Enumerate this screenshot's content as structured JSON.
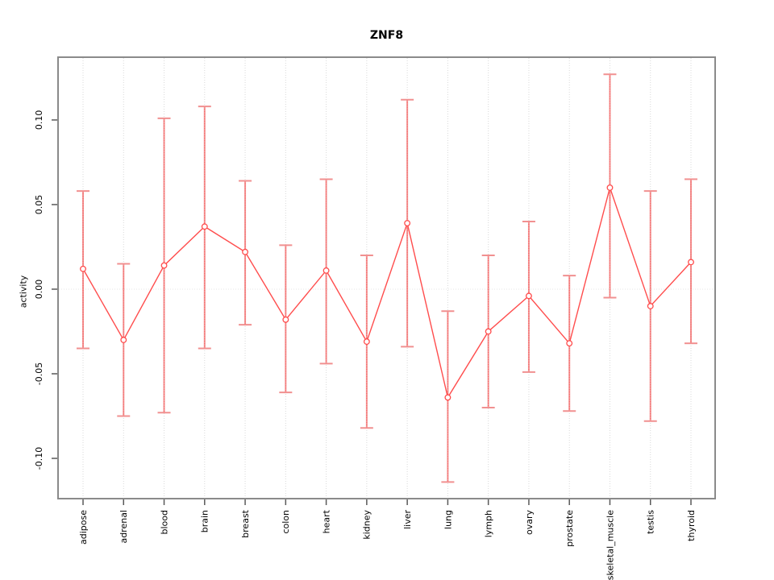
{
  "chart_data": {
    "type": "line",
    "title": "ZNF8",
    "xlabel": "",
    "ylabel": "activity",
    "legend": "none",
    "grid": "vertical dotted gridline per category; dotted horizontal line at y=0",
    "categories": [
      "adipose",
      "adrenal",
      "blood",
      "brain",
      "breast",
      "colon",
      "heart",
      "kidney",
      "liver",
      "lung",
      "lymph",
      "ovary",
      "prostate",
      "skeletal_muscle",
      "testis",
      "thyroid"
    ],
    "series": [
      {
        "name": "activity",
        "marker": "open-circle",
        "values": [
          0.012,
          -0.03,
          0.014,
          0.037,
          0.022,
          -0.018,
          0.011,
          -0.031,
          0.039,
          -0.064,
          -0.025,
          -0.004,
          -0.032,
          0.06,
          -0.01,
          0.016
        ],
        "error_upper": [
          0.058,
          0.015,
          0.101,
          0.108,
          0.064,
          0.026,
          0.065,
          0.02,
          0.112,
          -0.013,
          0.02,
          0.04,
          0.008,
          0.127,
          0.058,
          0.065
        ],
        "error_lower": [
          -0.035,
          -0.075,
          -0.073,
          -0.035,
          -0.021,
          -0.061,
          -0.044,
          -0.082,
          -0.034,
          -0.114,
          -0.07,
          -0.049,
          -0.072,
          -0.005,
          -0.078,
          -0.032
        ]
      }
    ],
    "yticks": [
      -0.1,
      -0.05,
      0.0,
      0.05,
      0.1
    ],
    "ylim": [
      -0.1238,
      0.1371
    ],
    "colors": {
      "line": "#ff4d4d",
      "point_stroke": "#ff4d4d",
      "point_fill": "#ffffff",
      "error_bar": "#f19090",
      "error_bar_dot": "#ff5c5c",
      "grid": "#d9d9d9",
      "zero_line": "#e4e4e4",
      "frame": "#8a8a8a",
      "tick": "#595959",
      "text": "#000000"
    }
  }
}
